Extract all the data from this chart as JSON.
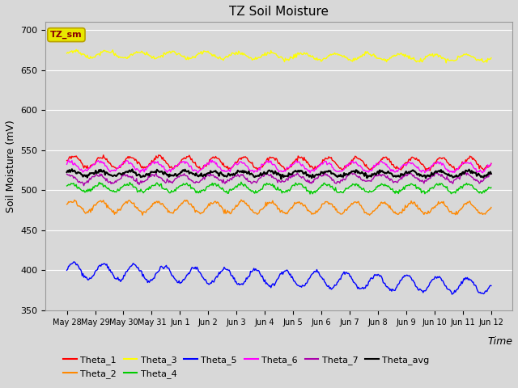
{
  "title": "TZ Soil Moisture",
  "xlabel": "Time",
  "ylabel": "Soil Moisture (mV)",
  "ylim": [
    350,
    710
  ],
  "yticks": [
    350,
    400,
    450,
    500,
    550,
    600,
    650,
    700
  ],
  "background_color": "#d8d8d8",
  "plot_bg_color": "#d8d8d8",
  "legend_label": "TZ_sm",
  "legend_label_color": "#8b0000",
  "legend_box_facecolor": "#e8e800",
  "legend_box_edgecolor": "#b8a000",
  "series_order": [
    "Theta_1",
    "Theta_2",
    "Theta_3",
    "Theta_4",
    "Theta_5",
    "Theta_6",
    "Theta_7",
    "Theta_avg"
  ],
  "series": {
    "Theta_1": {
      "color": "#ff0000",
      "base": 535,
      "amplitude": 7,
      "trend": -1.5,
      "freq": 15,
      "phase": 0.0
    },
    "Theta_2": {
      "color": "#ff8800",
      "base": 480,
      "amplitude": 7,
      "trend": -3.0,
      "freq": 15,
      "phase": 0.3
    },
    "Theta_3": {
      "color": "#ffff00",
      "base": 670,
      "amplitude": 4,
      "trend": -5.0,
      "freq": 13,
      "phase": 0.1
    },
    "Theta_4": {
      "color": "#00cc00",
      "base": 503,
      "amplitude": 5,
      "trend": -0.5,
      "freq": 15,
      "phase": 0.5
    },
    "Theta_5": {
      "color": "#0000ff",
      "base": 400,
      "amplitude": 10,
      "trend": -20.0,
      "freq": 14,
      "phase": 0.2
    },
    "Theta_6": {
      "color": "#ff00ff",
      "base": 530,
      "amplitude": 6,
      "trend": -1.0,
      "freq": 15,
      "phase": 0.8
    },
    "Theta_7": {
      "color": "#aa00aa",
      "base": 514,
      "amplitude": 5,
      "trend": 2.0,
      "freq": 15,
      "phase": 1.0
    },
    "Theta_avg": {
      "color": "#000000",
      "base": 521,
      "amplitude": 3,
      "trend": -0.5,
      "freq": 15,
      "phase": 0.4
    }
  },
  "n_points": 500,
  "xtick_labels": [
    "May 28",
    "May 29",
    "May 30",
    "May 31",
    "Jun 1",
    "Jun 2",
    "Jun 3",
    "Jun 4",
    "Jun 5",
    "Jun 6",
    "Jun 7",
    "Jun 8",
    "Jun 9",
    "Jun 10",
    "Jun 11",
    "Jun 12"
  ],
  "linewidth": 1.0,
  "avg_linewidth": 1.5
}
